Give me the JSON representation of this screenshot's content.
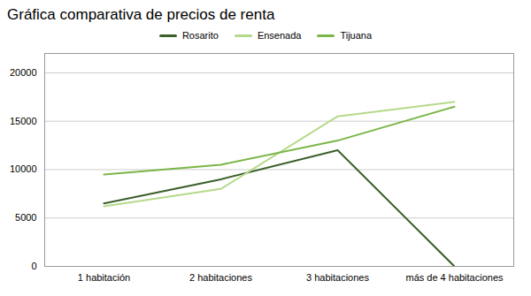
{
  "chart_data": {
    "type": "line",
    "title": "Gráfica comparativa de precios de renta",
    "categories": [
      "1 habitación",
      "2 habitaciones",
      "3 habitaciones",
      "más de 4 habitaciones"
    ],
    "series": [
      {
        "name": "Rosarito",
        "color": "#3a5f2a",
        "values": [
          6500,
          9000,
          12000,
          0
        ]
      },
      {
        "name": "Ensenada",
        "color": "#b5d98a",
        "values": [
          6200,
          8000,
          15500,
          17000
        ]
      },
      {
        "name": "Tijuana",
        "color": "#7ab648",
        "values": [
          9500,
          10500,
          13000,
          16500
        ]
      }
    ],
    "ylim": [
      0,
      22000
    ],
    "yticks": [
      0,
      5000,
      10000,
      15000,
      20000
    ],
    "grid": true,
    "legend": "top"
  }
}
